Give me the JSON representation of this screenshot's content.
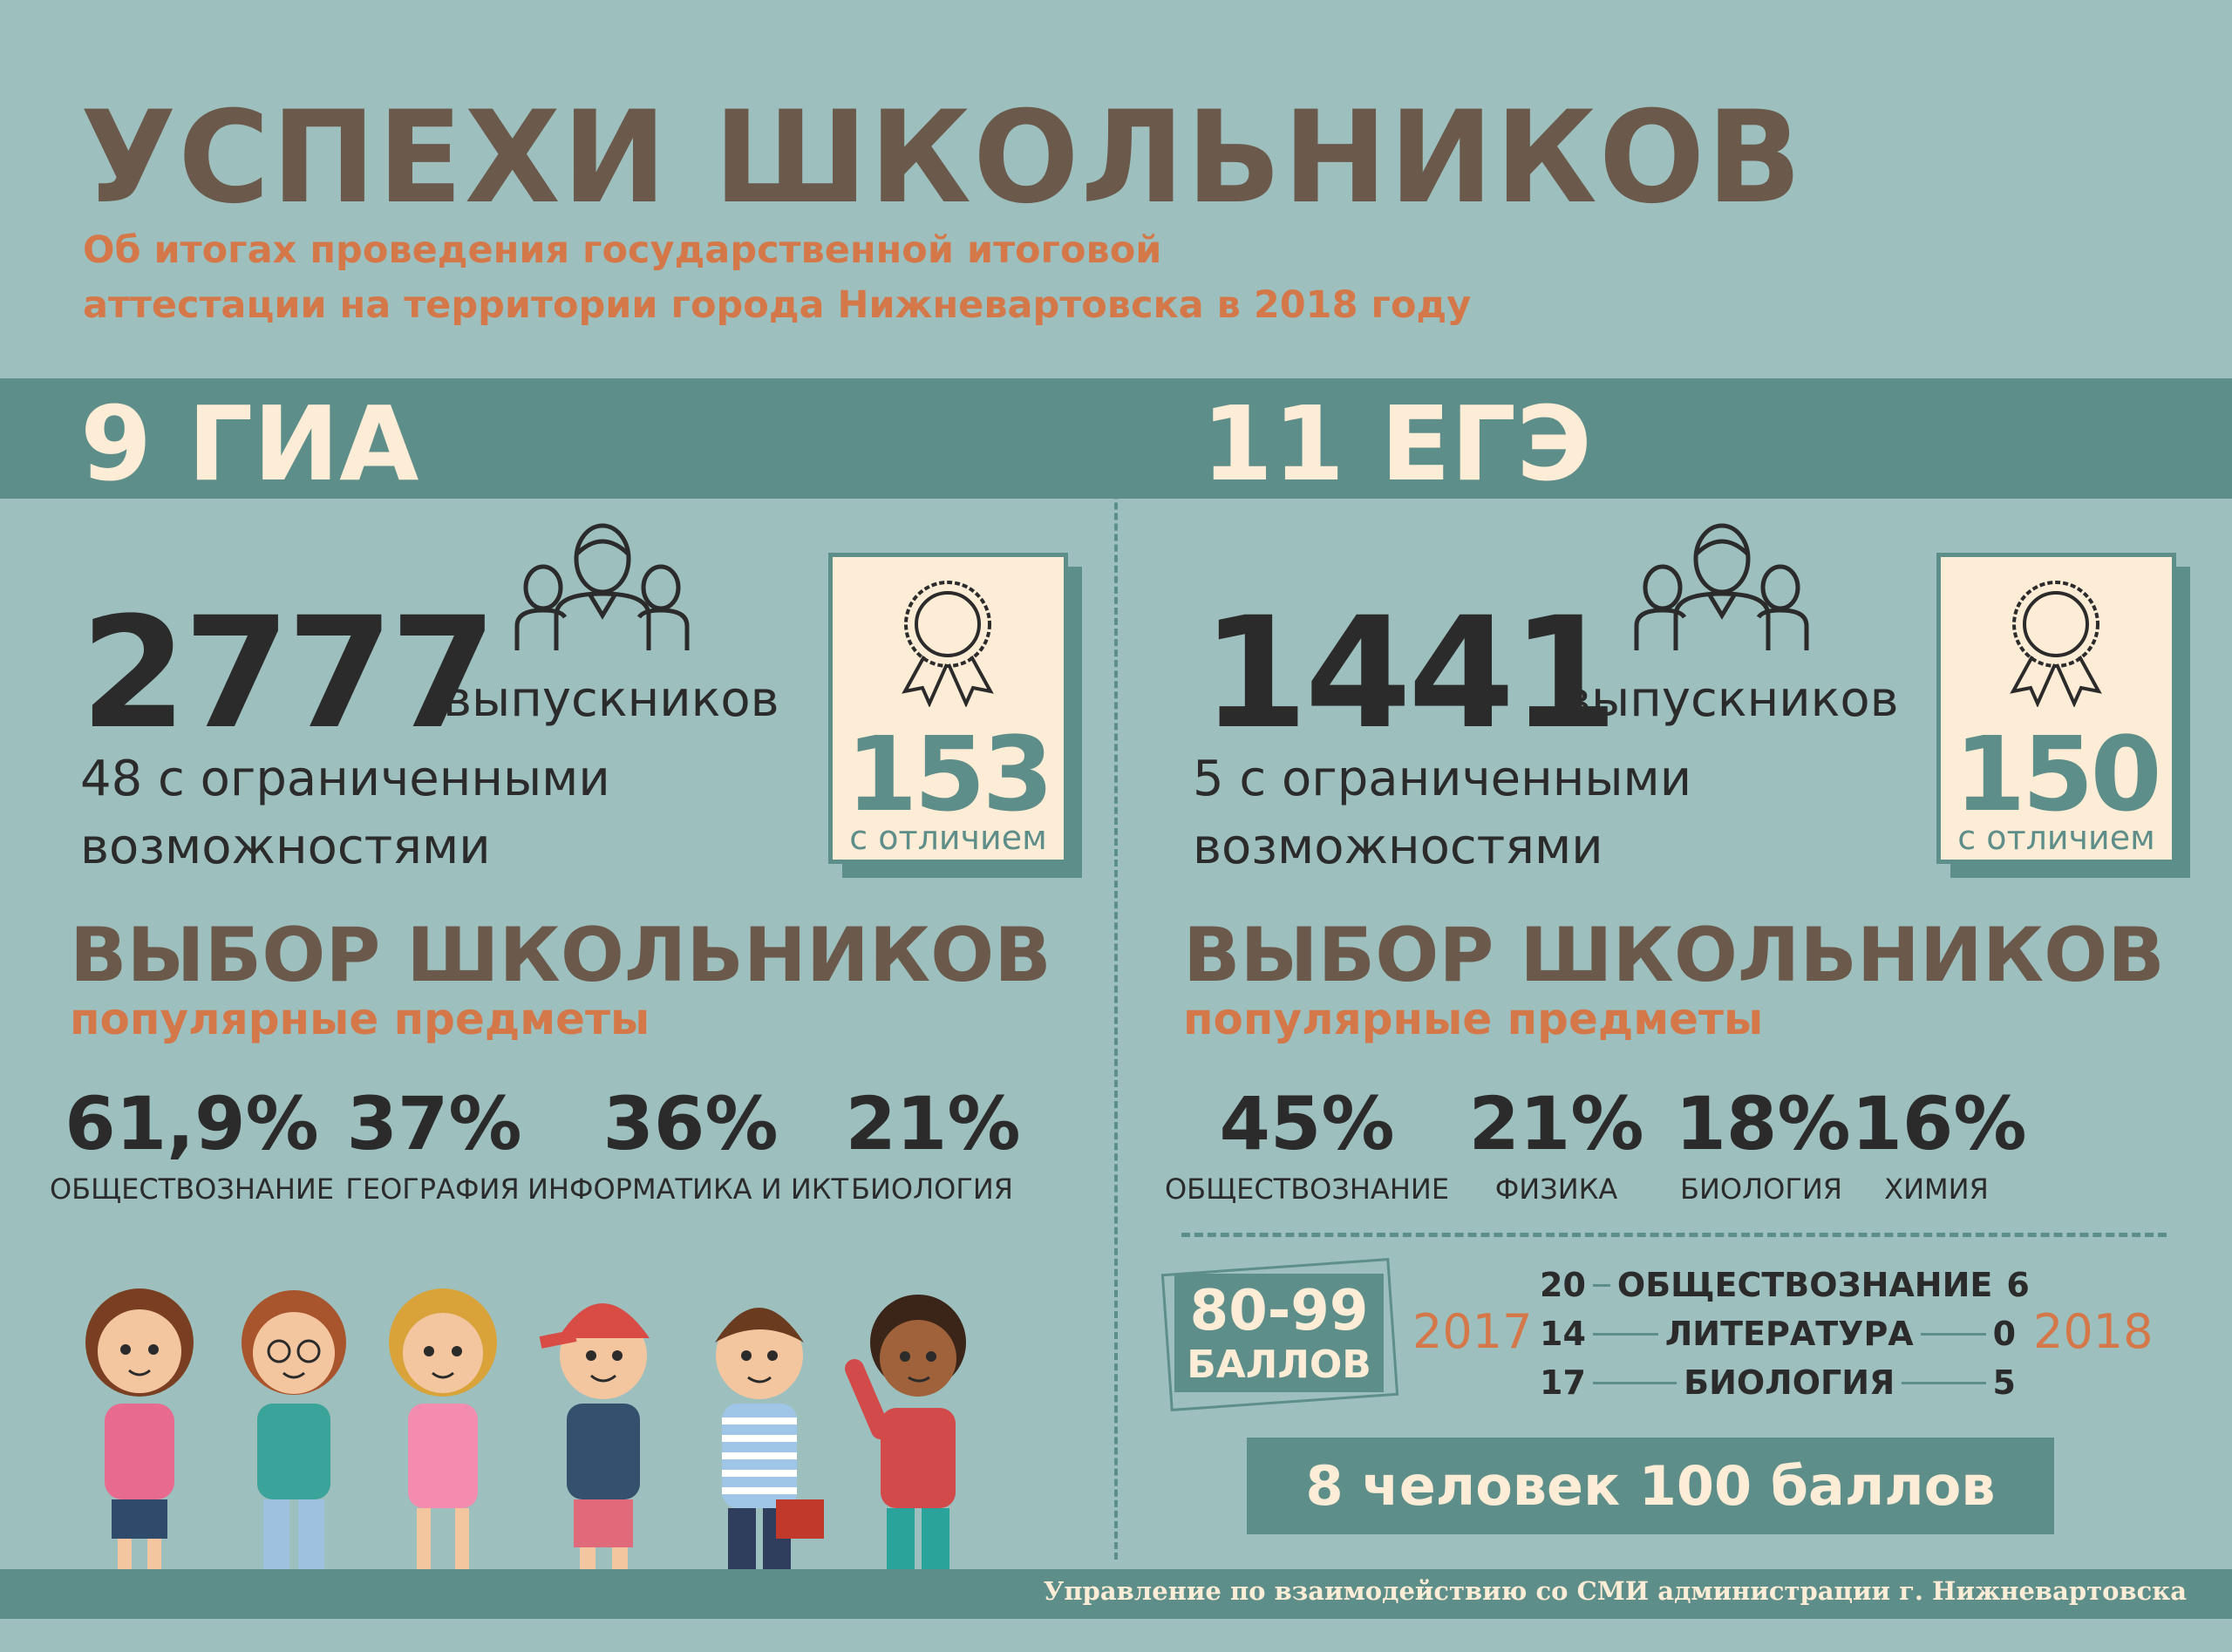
{
  "title": "УСПЕХИ ШКОЛЬНИКОВ",
  "subtitle": [
    "Об итогах проведения государственной итоговой",
    "аттестации на территории города Нижневартовска в  2018 году"
  ],
  "colors": {
    "background": "#9dbfbd",
    "accent_teal": "#5e8e89",
    "cream": "#fdecd6",
    "title_brown": "#6b5a4b",
    "orange": "#d4784a"
  },
  "gia": {
    "heading": "9 ГИА",
    "graduates": "2777",
    "graduates_label": "выпускников",
    "limited": [
      "48 с ограниченными",
      "возможностями"
    ],
    "honors": "153",
    "honors_label": "с отличием",
    "choice_title": "ВЫБОР ШКОЛЬНИКОВ",
    "choice_subtitle": "популярные предметы",
    "subjects": [
      {
        "pct": "61,9%",
        "name": "ОБЩЕСТВОЗНАНИЕ"
      },
      {
        "pct": "37%",
        "name": "ГЕОГРАФИЯ"
      },
      {
        "pct": "36%",
        "name": "ИНФОРМАТИКА И ИКТ"
      },
      {
        "pct": "21%",
        "name": "БИОЛОГИЯ"
      }
    ]
  },
  "ege": {
    "heading": "11 ЕГЭ",
    "graduates": "1441",
    "graduates_label": "выпускников",
    "limited": [
      "5 с ограниченными",
      "возможностями"
    ],
    "honors": "150",
    "honors_label": "с отличием",
    "choice_title": "ВЫБОР ШКОЛЬНИКОВ",
    "choice_subtitle": "популярные предметы",
    "subjects": [
      {
        "pct": "45%",
        "name": "ОБЩЕСТВОЗНАНИЕ"
      },
      {
        "pct": "21%",
        "name": "ФИЗИКА"
      },
      {
        "pct": "18%",
        "name": "БИОЛОГИЯ"
      },
      {
        "pct": "16%",
        "name": "ХИМИЯ"
      }
    ],
    "high_scores": {
      "range": "80-99",
      "unit": "БАЛЛОВ",
      "year_left": "2017",
      "year_right": "2018",
      "rows": [
        {
          "subject": "ОБЩЕСТВОЗНАНИЕ",
          "y2017": "20",
          "y2018": "6"
        },
        {
          "subject": "ЛИТЕРАТУРА",
          "y2017": "14",
          "y2018": "0"
        },
        {
          "subject": "БИОЛОГИЯ",
          "y2017": "17",
          "y2018": "5"
        }
      ]
    },
    "hundred": "8 человек 100 баллов"
  },
  "icons": [
    "group-of-people-icon",
    "award-rosette-icon"
  ],
  "footer": "Управление по взаимодействию со СМИ администрации г. Нижневартовска"
}
